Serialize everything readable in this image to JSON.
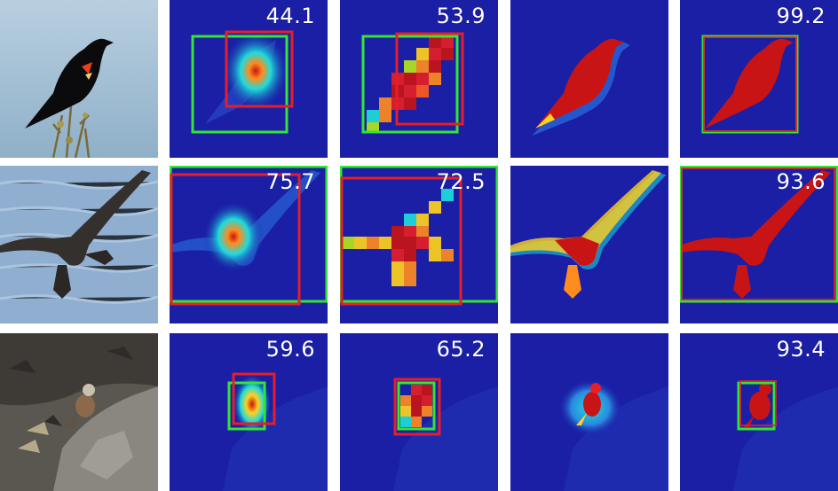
{
  "figure": {
    "rows": [
      {
        "subject": "red-winged blackbird perched on a twig",
        "scores": [
          "44.1",
          "53.9",
          "",
          "99.2"
        ]
      },
      {
        "subject": "dark seabird in flight over water",
        "scores": [
          "75.7",
          "72.5",
          "",
          "93.6"
        ]
      },
      {
        "subject": "small finch on gray rocks",
        "scores": [
          "59.6",
          "65.2",
          "",
          "93.4"
        ]
      }
    ],
    "colors": {
      "map_background": "#1a1fa6",
      "ground_truth_box": "#32e632",
      "predicted_box": "#e61e28",
      "heat_peak": "#c81414",
      "heat_mid": "#ffd21e",
      "heat_low": "#1edcdc"
    }
  }
}
